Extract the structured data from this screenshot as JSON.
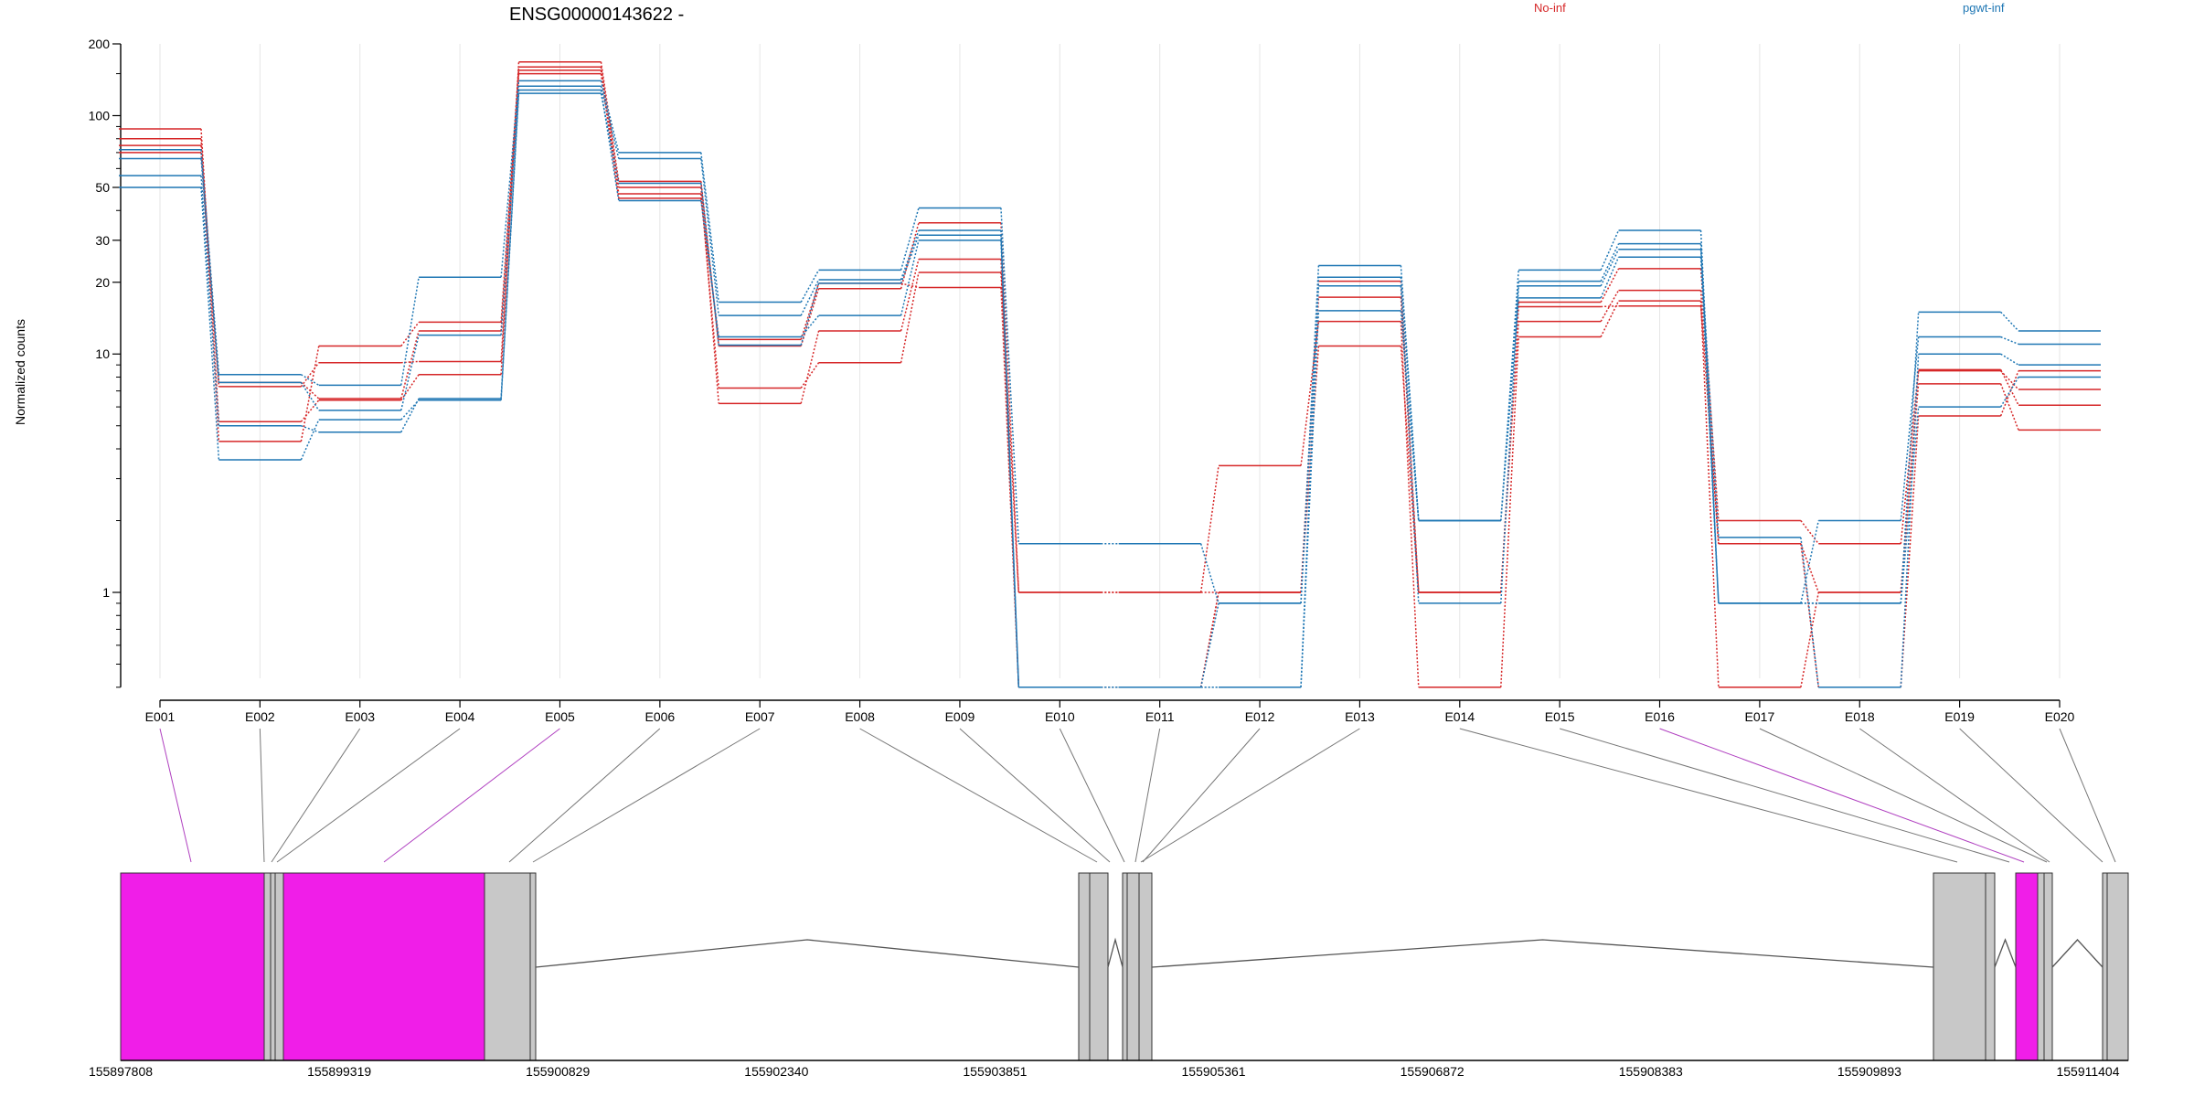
{
  "chart_data": {
    "type": "line",
    "title": "ENSG00000143622 -",
    "ylabel": "Normalized counts",
    "yscale": "log",
    "ylim": [
      0.4,
      200
    ],
    "yticks": [
      1,
      10,
      20,
      30,
      50,
      100,
      200
    ],
    "categories": [
      "E001",
      "E002",
      "E003",
      "E004",
      "E005",
      "E006",
      "E007",
      "E008",
      "E009",
      "E010",
      "E011",
      "E012",
      "E013",
      "E014",
      "E015",
      "E016",
      "E017",
      "E018",
      "E019",
      "E020"
    ],
    "legend": [
      {
        "name": "No-inf",
        "color": "#d62728"
      },
      {
        "name": "pgwt-inf",
        "color": "#1f77b4"
      }
    ],
    "series": [
      {
        "group": "No-inf",
        "color": "#d62728",
        "values": [
          88,
          5.2,
          6.4,
          8.2,
          168,
          53,
          10.8,
          18.8,
          35.5,
          1,
          1,
          1,
          20.2,
          1,
          16.5,
          22.8,
          2,
          1.6,
          8.6,
          6.1
        ]
      },
      {
        "group": "No-inf",
        "color": "#d62728",
        "values": [
          80,
          4.3,
          10.8,
          13.6,
          160,
          50,
          6.2,
          12.5,
          25,
          0.4,
          0.4,
          1,
          17.3,
          1,
          13.7,
          18.5,
          1.6,
          1,
          8.5,
          7.1
        ]
      },
      {
        "group": "No-inf",
        "color": "#d62728",
        "values": [
          75,
          7.3,
          9.2,
          9.3,
          155,
          47,
          7.2,
          9.2,
          22,
          1,
          1,
          3.4,
          13.7,
          0.4,
          11.8,
          16.7,
          0.4,
          1,
          7.5,
          4.8
        ]
      },
      {
        "group": "No-inf",
        "color": "#d62728",
        "values": [
          70,
          7.6,
          6.5,
          12.5,
          150,
          45,
          11.5,
          19.8,
          19,
          0.4,
          0.4,
          1,
          10.8,
          1,
          15.8,
          15.9,
          1.6,
          0.4,
          5.5,
          8.5
        ]
      },
      {
        "group": "pgwt-inf",
        "color": "#1f77b4",
        "values": [
          72,
          8.2,
          7.4,
          21,
          140,
          70,
          16.5,
          22.5,
          41,
          1.6,
          1.6,
          0.9,
          23.5,
          2,
          22.5,
          33,
          0.9,
          0.9,
          15,
          12.5
        ]
      },
      {
        "group": "pgwt-inf",
        "color": "#1f77b4",
        "values": [
          66,
          7.6,
          5.8,
          12,
          133,
          66,
          14.5,
          20.5,
          33,
          0.4,
          0.4,
          0.4,
          21,
          2,
          20.2,
          29,
          0.9,
          2,
          11.8,
          11
        ]
      },
      {
        "group": "pgwt-inf",
        "color": "#1f77b4",
        "values": [
          56,
          5,
          4.7,
          6.5,
          128,
          44,
          11.8,
          14.5,
          30,
          0.4,
          0.4,
          0.9,
          19.3,
          0.9,
          19.3,
          27.5,
          1.7,
          0.4,
          10,
          9
        ]
      },
      {
        "group": "pgwt-inf",
        "color": "#1f77b4",
        "values": [
          50,
          3.6,
          5.3,
          6.4,
          124,
          52,
          10.9,
          19.8,
          31.5,
          0.4,
          0.4,
          0.4,
          15.2,
          2,
          17.2,
          25.5,
          0.9,
          0.9,
          6,
          8
        ]
      }
    ]
  },
  "gene_model": {
    "genomic_ticks": [
      "155897808",
      "155899319",
      "155900829",
      "155902340",
      "155903851",
      "155905361",
      "155906872",
      "155908383",
      "155909893",
      "155911404"
    ],
    "highlight_color": "#f01ee8",
    "exon_color": "#c8c8c8"
  }
}
